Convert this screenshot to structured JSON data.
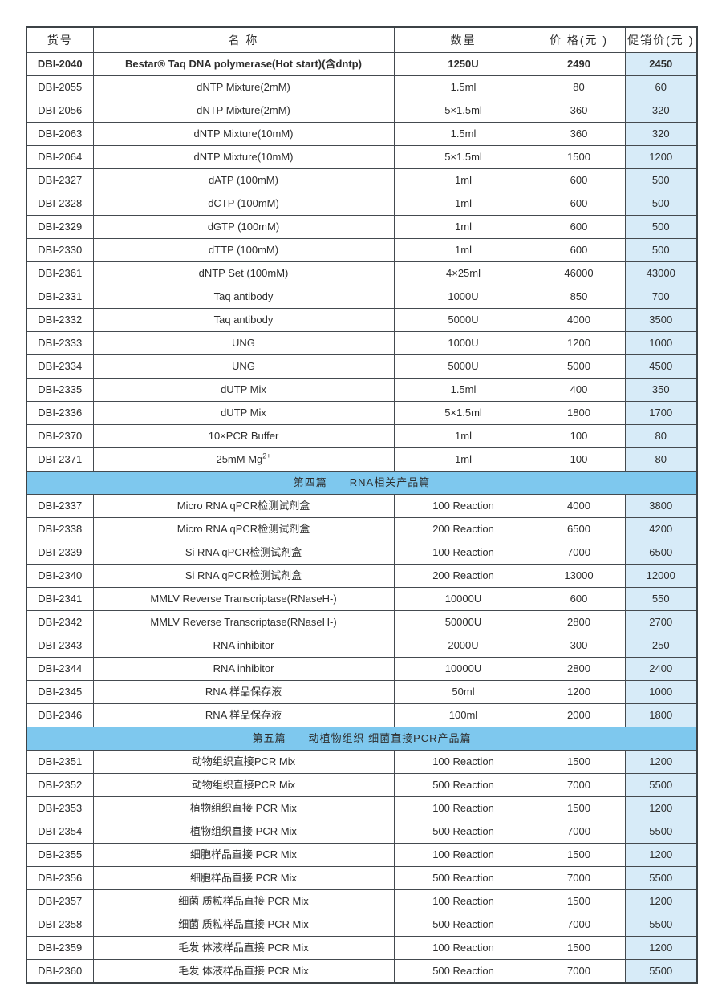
{
  "table": {
    "columns": [
      {
        "key": "code",
        "label": "货号"
      },
      {
        "key": "name",
        "label": "名  称"
      },
      {
        "key": "qty",
        "label": "数量"
      },
      {
        "key": "price",
        "label": "价 格(元 )"
      },
      {
        "key": "promo",
        "label": "促销价(元 )"
      }
    ],
    "colors": {
      "promo_column_fill": "#d7ebf8",
      "section_bar_fill": "#7ec8ee",
      "grid_border": "#444a4f"
    },
    "rows": [
      {
        "type": "product",
        "bold": true,
        "code": "DBI-2040",
        "name": "Bestar® Taq DNA polymerase(Hot start)(含dntp)",
        "qty": "1250U",
        "price": "2490",
        "promo": "2450"
      },
      {
        "type": "product",
        "bold": false,
        "code": "DBI-2055",
        "name": "dNTP Mixture(2mM)",
        "qty": "1.5ml",
        "price": "80",
        "promo": "60"
      },
      {
        "type": "product",
        "bold": false,
        "code": "DBI-2056",
        "name": "dNTP Mixture(2mM)",
        "qty": "5×1.5ml",
        "price": "360",
        "promo": "320"
      },
      {
        "type": "product",
        "bold": false,
        "code": "DBI-2063",
        "name": "dNTP Mixture(10mM)",
        "qty": "1.5ml",
        "price": "360",
        "promo": "320"
      },
      {
        "type": "product",
        "bold": false,
        "code": "DBI-2064",
        "name": "dNTP Mixture(10mM)",
        "qty": "5×1.5ml",
        "price": "1500",
        "promo": "1200"
      },
      {
        "type": "product",
        "bold": false,
        "code": "DBI-2327",
        "name": "dATP (100mM)",
        "qty": "1ml",
        "price": "600",
        "promo": "500"
      },
      {
        "type": "product",
        "bold": false,
        "code": "DBI-2328",
        "name": "dCTP (100mM)",
        "qty": "1ml",
        "price": "600",
        "promo": "500"
      },
      {
        "type": "product",
        "bold": false,
        "code": "DBI-2329",
        "name": "dGTP (100mM)",
        "qty": "1ml",
        "price": "600",
        "promo": "500"
      },
      {
        "type": "product",
        "bold": false,
        "code": "DBI-2330",
        "name": "dTTP (100mM)",
        "qty": "1ml",
        "price": "600",
        "promo": "500"
      },
      {
        "type": "product",
        "bold": false,
        "code": "DBI-2361",
        "name": "dNTP Set (100mM)",
        "qty": "4×25ml",
        "price": "46000",
        "promo": "43000"
      },
      {
        "type": "product",
        "bold": false,
        "code": "DBI-2331",
        "name": "Taq antibody",
        "qty": "1000U",
        "price": "850",
        "promo": "700"
      },
      {
        "type": "product",
        "bold": false,
        "code": "DBI-2332",
        "name": "Taq antibody",
        "qty": "5000U",
        "price": "4000",
        "promo": "3500"
      },
      {
        "type": "product",
        "bold": false,
        "code": "DBI-2333",
        "name": "UNG",
        "qty": "1000U",
        "price": "1200",
        "promo": "1000"
      },
      {
        "type": "product",
        "bold": false,
        "code": "DBI-2334",
        "name": "UNG",
        "qty": "5000U",
        "price": "5000",
        "promo": "4500"
      },
      {
        "type": "product",
        "bold": false,
        "code": "DBI-2335",
        "name": "dUTP Mix",
        "qty": "1.5ml",
        "price": "400",
        "promo": "350"
      },
      {
        "type": "product",
        "bold": false,
        "code": "DBI-2336",
        "name": "dUTP Mix",
        "qty": "5×1.5ml",
        "price": "1800",
        "promo": "1700"
      },
      {
        "type": "product",
        "bold": false,
        "code": "DBI-2370",
        "name": "10×PCR Buffer",
        "qty": "1ml",
        "price": "100",
        "promo": "80"
      },
      {
        "type": "product",
        "bold": false,
        "code": "DBI-2371",
        "name": "25mM Mg",
        "name_sup": "2+",
        "qty": "1ml",
        "price": "100",
        "promo": "80"
      },
      {
        "type": "section",
        "label": "第四篇　　RNA相关产品篇"
      },
      {
        "type": "product",
        "bold": false,
        "code": "DBI-2337",
        "name": "Micro RNA qPCR检测试剂盒",
        "qty": "100 Reaction",
        "price": "4000",
        "promo": "3800"
      },
      {
        "type": "product",
        "bold": false,
        "code": "DBI-2338",
        "name": "Micro RNA qPCR检测试剂盒",
        "qty": "200 Reaction",
        "price": "6500",
        "promo": "4200"
      },
      {
        "type": "product",
        "bold": false,
        "code": "DBI-2339",
        "name": "Si RNA qPCR检测试剂盒",
        "qty": "100 Reaction",
        "price": "7000",
        "promo": "6500"
      },
      {
        "type": "product",
        "bold": false,
        "code": "DBI-2340",
        "name": "Si RNA qPCR检测试剂盒",
        "qty": "200 Reaction",
        "price": "13000",
        "promo": "12000"
      },
      {
        "type": "product",
        "bold": false,
        "code": "DBI-2341",
        "name": "MMLV Reverse Transcriptase(RNaseH-)",
        "qty": "10000U",
        "price": "600",
        "promo": "550"
      },
      {
        "type": "product",
        "bold": false,
        "code": "DBI-2342",
        "name": "MMLV Reverse Transcriptase(RNaseH-)",
        "qty": "50000U",
        "price": "2800",
        "promo": "2700"
      },
      {
        "type": "product",
        "bold": false,
        "code": "DBI-2343",
        "name": "RNA inhibitor",
        "qty": "2000U",
        "price": "300",
        "promo": "250"
      },
      {
        "type": "product",
        "bold": false,
        "code": "DBI-2344",
        "name": "RNA inhibitor",
        "qty": "10000U",
        "price": "2800",
        "promo": "2400"
      },
      {
        "type": "product",
        "bold": false,
        "code": "DBI-2345",
        "name": "RNA 样品保存液",
        "qty": "50ml",
        "price": "1200",
        "promo": "1000"
      },
      {
        "type": "product",
        "bold": false,
        "code": "DBI-2346",
        "name": "RNA 样品保存液",
        "qty": "100ml",
        "price": "2000",
        "promo": "1800"
      },
      {
        "type": "section",
        "label": "第五篇　　动植物组织 细菌直接PCR产品篇"
      },
      {
        "type": "product",
        "bold": false,
        "code": "DBI-2351",
        "name": "动物组织直接PCR Mix",
        "qty": "100 Reaction",
        "price": "1500",
        "promo": "1200"
      },
      {
        "type": "product",
        "bold": false,
        "code": "DBI-2352",
        "name": "动物组织直接PCR Mix",
        "qty": "500 Reaction",
        "price": "7000",
        "promo": "5500"
      },
      {
        "type": "product",
        "bold": false,
        "code": "DBI-2353",
        "name": "植物组织直接 PCR Mix",
        "qty": "100 Reaction",
        "price": "1500",
        "promo": "1200"
      },
      {
        "type": "product",
        "bold": false,
        "code": "DBI-2354",
        "name": "植物组织直接 PCR Mix",
        "qty": "500 Reaction",
        "price": "7000",
        "promo": "5500"
      },
      {
        "type": "product",
        "bold": false,
        "code": "DBI-2355",
        "name": "细胞样品直接 PCR Mix",
        "qty": "100 Reaction",
        "price": "1500",
        "promo": "1200"
      },
      {
        "type": "product",
        "bold": false,
        "code": "DBI-2356",
        "name": "细胞样品直接 PCR Mix",
        "qty": "500 Reaction",
        "price": "7000",
        "promo": "5500"
      },
      {
        "type": "product",
        "bold": false,
        "code": "DBI-2357",
        "name": "细菌 质粒样品直接 PCR Mix",
        "qty": "100 Reaction",
        "price": "1500",
        "promo": "1200"
      },
      {
        "type": "product",
        "bold": false,
        "code": "DBI-2358",
        "name": "细菌 质粒样品直接 PCR Mix",
        "qty": "500 Reaction",
        "price": "7000",
        "promo": "5500"
      },
      {
        "type": "product",
        "bold": false,
        "code": "DBI-2359",
        "name": "毛发 体液样品直接 PCR Mix",
        "qty": "100 Reaction",
        "price": "1500",
        "promo": "1200"
      },
      {
        "type": "product",
        "bold": false,
        "code": "DBI-2360",
        "name": "毛发 体液样品直接 PCR Mix",
        "qty": "500 Reaction",
        "price": "7000",
        "promo": "5500"
      }
    ]
  }
}
